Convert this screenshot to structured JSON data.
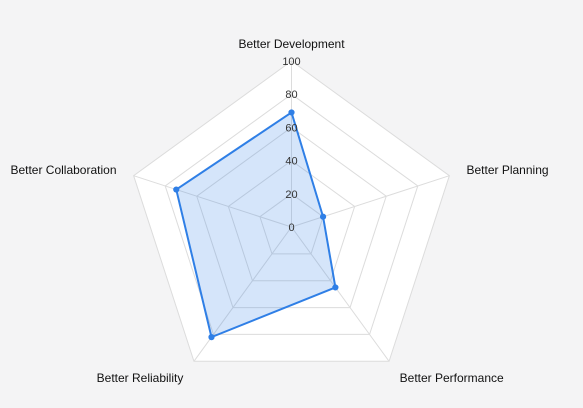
{
  "chart_data": {
    "type": "radar",
    "axes": [
      "Better Development",
      "Better Planning",
      "Better Performance",
      "Better Reliability",
      "Better Collaboration"
    ],
    "range": [
      0,
      100
    ],
    "ticks": [
      0,
      20,
      40,
      60,
      80,
      100
    ],
    "series": [
      {
        "values": [
          69,
          20,
          45,
          82,
          73
        ]
      }
    ],
    "grid": true,
    "legend": "none"
  },
  "colors": {
    "background": "#f4f4f5",
    "plot_fill": "#ffffff",
    "grid": "#dcdcdc",
    "series_line": "#2f7fe6",
    "series_fill": "rgba(47,127,230,0.20)"
  }
}
